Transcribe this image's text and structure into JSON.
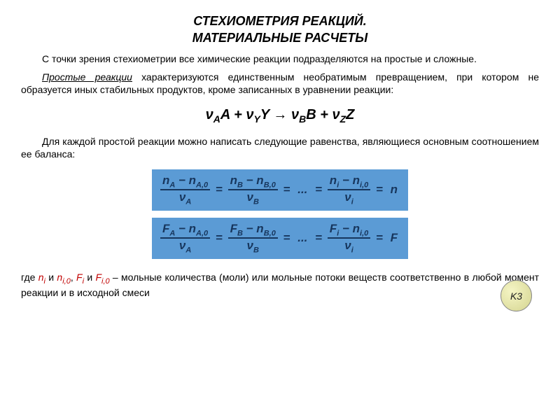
{
  "title": "СТЕХИОМЕТРИЯ РЕАКЦИЙ.",
  "subtitle": "МАТЕРИАЛЬНЫЕ РАСЧЕТЫ",
  "para1": "С точки зрения стехиометрии все химические реакции подразделяются на простые и сложные.",
  "para2_lead": "Простые реакции",
  "para2_body": " характеризуются единственным необратимым превращением, при котором не образуется иных стабильных продуктов, кроме записанных в уравнении реакции:",
  "eq_lhs1": "ν",
  "eq_lhs1_sub": "A",
  "eq_lhs1_var": "A",
  "eq_plus": " + ",
  "eq_lhs2": "ν",
  "eq_lhs2_sub": "Y",
  "eq_lhs2_var": "Y",
  "eq_arrow": " → ",
  "eq_rhs1": "ν",
  "eq_rhs1_sub": "B",
  "eq_rhs1_var": "B",
  "eq_rhs2": "ν",
  "eq_rhs2_sub": "Z",
  "eq_rhs2_var": "Z",
  "para3": "Для каждой простой реакции можно написать следующие равенства, являющиеся основным соотношением ее баланса:",
  "formula1": {
    "f1_num": "n",
    "f1_subA": "A",
    "f1_minus": " − n",
    "f1_sub0": "A,0",
    "f1_den": "ν",
    "f1_denA": "A",
    "f2_num": "n",
    "f2_subB": "B",
    "f2_sub0": "B,0",
    "f2_den": "ν",
    "f2_denB": "B",
    "dots": "...",
    "f3_num": "n",
    "f3_subi": "i",
    "f3_sub0": "i,0",
    "f3_den": "ν",
    "f3_deni": "i",
    "result": "n"
  },
  "formula2": {
    "f1_num": "F",
    "f1_subA": "A",
    "f1_sub0": "A,0",
    "f1_den": "ν",
    "f1_denA": "A",
    "f2_num": "F",
    "f2_subB": "B",
    "f2_sub0": "B,0",
    "f2_den": "ν",
    "f2_denB": "B",
    "dots": "...",
    "f3_num": "F",
    "f3_subi": "i",
    "f3_sub0": "i,0",
    "f3_den": "ν",
    "f3_deni": "i",
    "result": "F"
  },
  "badge": "K3",
  "footer_where": "где ",
  "footer_red1": "n",
  "footer_red1_sub": "i",
  "footer_and1": " и ",
  "footer_red2": "n",
  "footer_red2_sub": "i,0",
  "footer_comma": ", ",
  "footer_red3": "F",
  "footer_red3_sub": "i",
  "footer_and2": " и ",
  "footer_red4": "F",
  "footer_red4_sub": "i,0",
  "footer_body": " – мольные количества (моли) или мольные потоки веществ соответственно в любой момент реакции и в исходной смеси",
  "styling": {
    "bg": "#ffffff",
    "formula_bg": "#5b9bd5",
    "formula_text": "#17365d",
    "red_text": "#c00000",
    "badge_fill": "#d4d490",
    "title_fontsize": 18,
    "body_fontsize": 14,
    "equation_fontsize": 20
  }
}
